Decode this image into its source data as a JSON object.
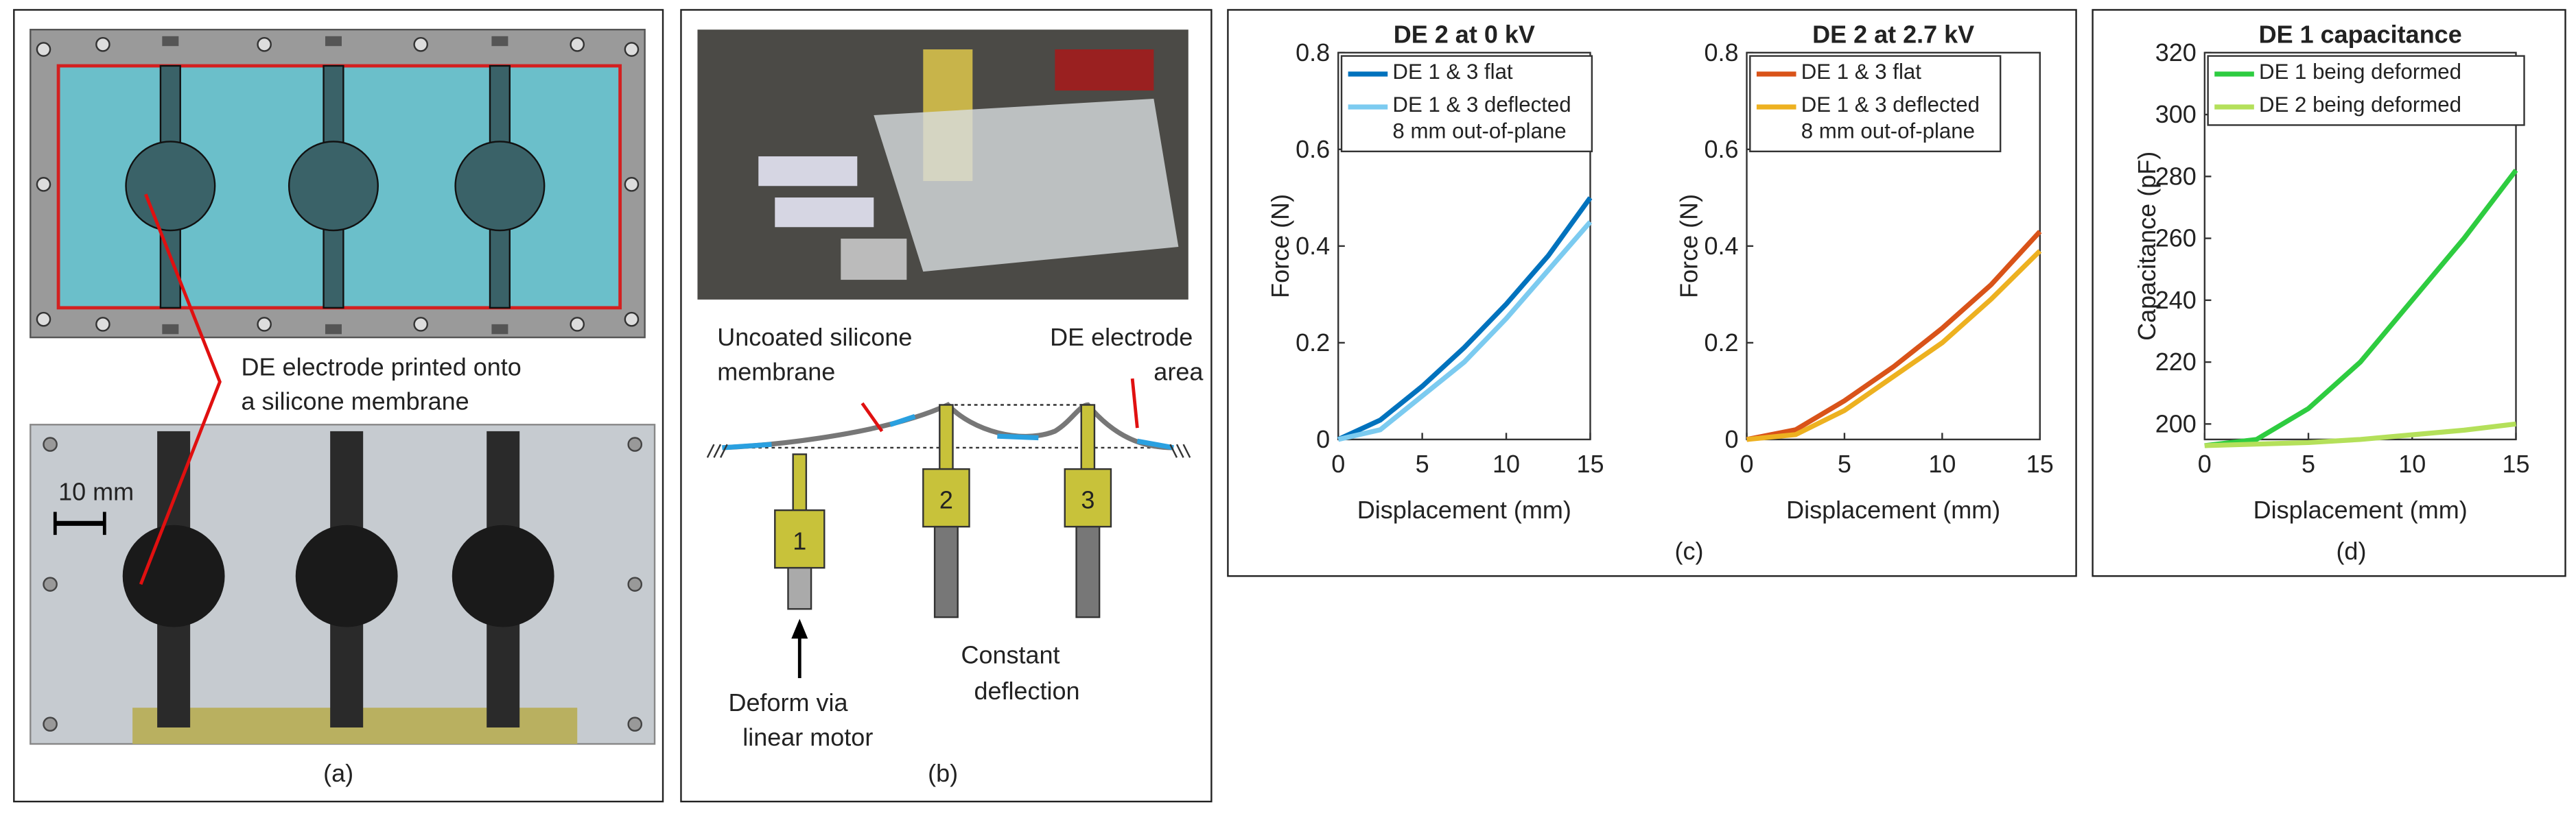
{
  "panels": {
    "a": {
      "annotation": [
        "DE electrode printed onto",
        "a silicone membrane"
      ],
      "scale_bar": "10 mm",
      "caption": "(a)"
    },
    "b": {
      "membrane_label": [
        "Uncoated silicone",
        "membrane"
      ],
      "electrode_label": [
        "DE electrode",
        "area"
      ],
      "posts": [
        "1",
        "2",
        "3"
      ],
      "motor_label": [
        "Deform via",
        "linear motor"
      ],
      "fixed_label": [
        "Constant",
        "deflection"
      ],
      "caption": "(b)"
    },
    "c": {
      "caption": "(c)"
    },
    "d": {
      "caption": "(d)"
    }
  },
  "chart_data": [
    {
      "type": "line",
      "title": "DE 2 at 0 kV",
      "xlabel": "Displacement (mm)",
      "ylabel": "Force (N)",
      "x": [
        0,
        2.5,
        5,
        7.5,
        10,
        12.5,
        15
      ],
      "series": [
        {
          "name": "DE 1 & 3 flat",
          "color": "#0072bd",
          "values": [
            0,
            0.04,
            0.11,
            0.19,
            0.28,
            0.38,
            0.5
          ]
        },
        {
          "name": "DE 1 & 3 deflected\n8 mm out-of-plane",
          "color": "#7ccbf0",
          "values": [
            0,
            0.02,
            0.09,
            0.16,
            0.25,
            0.35,
            0.45
          ]
        }
      ],
      "xlim": [
        0,
        15
      ],
      "xticks": [
        0,
        5,
        10,
        15
      ],
      "ylim": [
        0,
        0.8
      ],
      "yticks": [
        0,
        0.2,
        0.4,
        0.6,
        0.8
      ],
      "legend": "upper left"
    },
    {
      "type": "line",
      "title": "DE 2 at 2.7 kV",
      "xlabel": "Displacement (mm)",
      "ylabel": "Force (N)",
      "x": [
        0,
        2.5,
        5,
        7.5,
        10,
        12.5,
        15
      ],
      "series": [
        {
          "name": "DE 1 & 3 flat",
          "color": "#d95319",
          "values": [
            0,
            0.02,
            0.08,
            0.15,
            0.23,
            0.32,
            0.43
          ]
        },
        {
          "name": "DE 1 & 3 deflected\n8 mm out-of-plane",
          "color": "#edb120",
          "values": [
            0,
            0.01,
            0.06,
            0.13,
            0.2,
            0.29,
            0.39
          ]
        }
      ],
      "xlim": [
        0,
        15
      ],
      "xticks": [
        0,
        5,
        10,
        15
      ],
      "ylim": [
        0,
        0.8
      ],
      "yticks": [
        0,
        0.2,
        0.4,
        0.6,
        0.8
      ],
      "legend": "upper left"
    },
    {
      "type": "line",
      "title": "DE 1 capacitance",
      "xlabel": "Displacement (mm)",
      "ylabel": "Capacitance (pF)",
      "x": [
        0,
        2.5,
        5,
        7.5,
        10,
        12.5,
        15
      ],
      "series": [
        {
          "name": "DE 1 being deformed",
          "color": "#2ecc40",
          "values": [
            193,
            195,
            205,
            220,
            240,
            260,
            282
          ]
        },
        {
          "name": "DE 2 being deformed",
          "color": "#b4e05a",
          "values": [
            193,
            193.5,
            194,
            195,
            196.5,
            198,
            200
          ]
        }
      ],
      "xlim": [
        0,
        15
      ],
      "xticks": [
        0,
        5,
        10,
        15
      ],
      "ylim": [
        195,
        320
      ],
      "yticks": [
        200,
        220,
        240,
        260,
        280,
        300,
        320
      ],
      "legend": "upper left"
    }
  ]
}
